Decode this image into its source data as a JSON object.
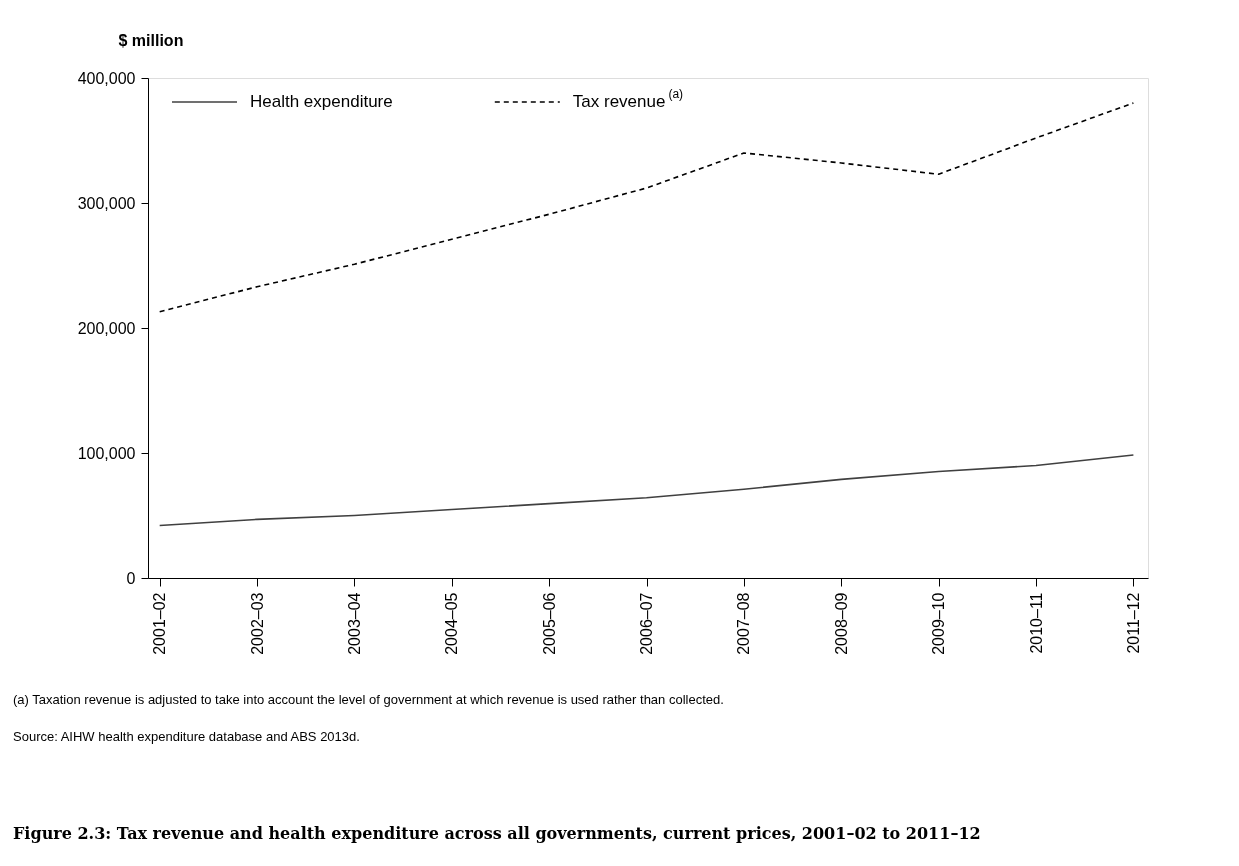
{
  "chart_data": {
    "type": "line",
    "title": "Figure 2.3: Tax revenue and health expenditure across all governments, current prices, 2001–02 to 2011–12",
    "ylabel": "$ million",
    "categories": [
      "2001–02",
      "2002–03",
      "2003–04",
      "2004–05",
      "2005–06",
      "2006–07",
      "2007–08",
      "2008–09",
      "2009–10",
      "2010–11",
      "2011–12"
    ],
    "series": [
      {
        "name": "Health expenditure",
        "color": "#404040",
        "line_style": "solid",
        "values": [
          42000,
          46900,
          50000,
          54800,
          59500,
          64200,
          71000,
          78900,
          85200,
          90000,
          98400
        ]
      },
      {
        "name": "Tax revenue$^{(a)}$",
        "color": "#000000",
        "line_style": "dashed",
        "values": [
          213000,
          233000,
          251000,
          271000,
          291000,
          312000,
          340000,
          332000,
          323000,
          352000,
          380000
        ]
      }
    ],
    "ylim": [
      0,
      400000
    ],
    "yticks": [
      0,
      {
        "value": 100000,
        "label": "100,000"
      },
      {
        "value": 200000,
        "label": "200,000"
      },
      {
        "value": 300000,
        "label": "300,000"
      },
      {
        "value": 400000,
        "label": "400,000"
      }
    ],
    "grid": false,
    "legend": "top left",
    "marker": "none",
    "annotations": [
      "(a) Taxation revenue is adjusted to take into account the level of government at which revenue is used rather than collected.",
      "Source: AIHW health expenditure database and ABS 2013d."
    ]
  }
}
